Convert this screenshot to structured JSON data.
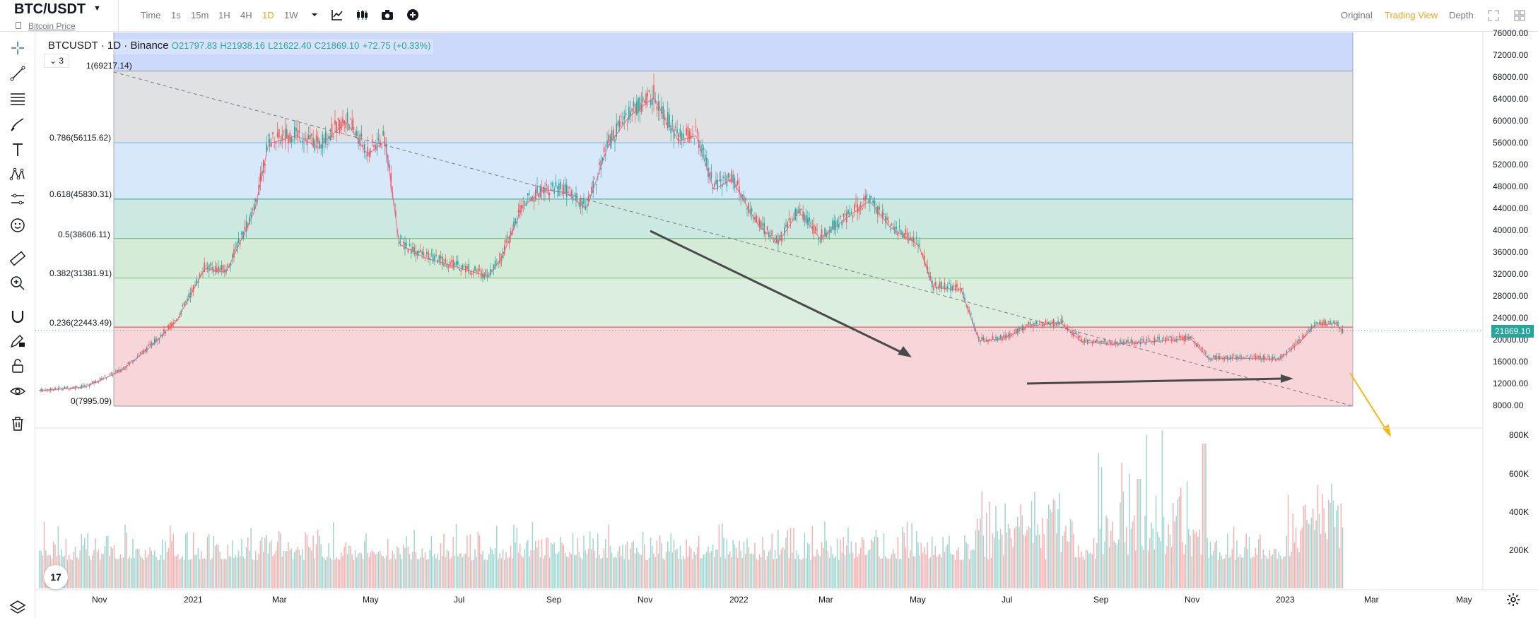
{
  "header": {
    "symbol": "BTC/USDT",
    "symbol_subtitle": "Bitcoin Price",
    "intervals": [
      {
        "label": "Time",
        "active": false
      },
      {
        "label": "1s",
        "active": false
      },
      {
        "label": "15m",
        "active": false
      },
      {
        "label": "1H",
        "active": false
      },
      {
        "label": "4H",
        "active": false
      },
      {
        "label": "1D",
        "active": true
      },
      {
        "label": "1W",
        "active": false
      }
    ],
    "right_tabs": [
      {
        "label": "Original",
        "active": false
      },
      {
        "label": "Trading View",
        "active": true
      },
      {
        "label": "Depth",
        "active": false
      }
    ]
  },
  "legend": {
    "symbol": "BTCUSDT",
    "interval": "1D",
    "exchange": "Binance",
    "open": "O21797.83",
    "high": "H21938.16",
    "low": "L21622.40",
    "close": "C21869.10",
    "change": "+72.75 (+0.33%)",
    "collapsed_count": "3"
  },
  "fib_levels": [
    {
      "label": "1(69217.14)",
      "color": "#787b86"
    },
    {
      "label": "0.786(56115.62)",
      "color": "#2196f3"
    },
    {
      "label": "0.618(45830.31)",
      "color": "#089981"
    },
    {
      "label": "0.5(38606.11)",
      "color": "#4caf50"
    },
    {
      "label": "0.382(31381.91)",
      "color": "#4caf50"
    },
    {
      "label": "0.236(22443.49)",
      "color": "#f23645"
    },
    {
      "label": "0(7995.09)",
      "color": "#787b86"
    }
  ],
  "price_axis": [
    "76000.00",
    "72000.00",
    "68000.00",
    "64000.00",
    "60000.00",
    "56000.00",
    "52000.00",
    "48000.00",
    "44000.00",
    "40000.00",
    "36000.00",
    "32000.00",
    "28000.00",
    "24000.00",
    "20000.00",
    "16000.00",
    "12000.00",
    "8000.00"
  ],
  "current_price": "21869.10",
  "volume_axis": [
    "800K",
    "600K",
    "400K",
    "200K"
  ],
  "time_axis": [
    "Nov",
    "2021",
    "Mar",
    "May",
    "Jul",
    "Sep",
    "Nov",
    "2022",
    "Mar",
    "May",
    "Jul",
    "Sep",
    "Nov",
    "2023",
    "Mar",
    "May"
  ],
  "colors": {
    "up": "#26a69a",
    "down": "#ef5350",
    "accent": "#f0a41c",
    "ma": "#f06292"
  },
  "icons": {
    "crosshair": "crosshair-icon",
    "trend_line": "trend-line-icon",
    "fib": "fib-retracement-icon",
    "brush": "brush-icon",
    "text": "text-icon",
    "pattern": "pattern-icon",
    "prediction": "prediction-icon",
    "emoji": "emoji-icon",
    "ruler": "ruler-icon",
    "zoom": "zoom-in-icon",
    "magnet": "magnet-icon",
    "stay_drawing": "pencil-lock-icon",
    "lock": "lock-icon",
    "eye": "eye-icon",
    "trash": "trash-icon",
    "layers": "layers-icon",
    "settings": "gear-icon",
    "fullscreen": "fullscreen-icon",
    "layout": "grid-layout-icon"
  }
}
